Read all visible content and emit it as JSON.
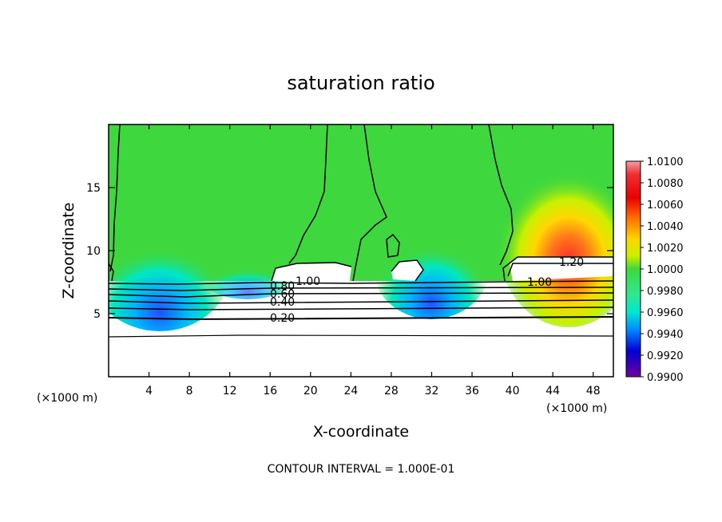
{
  "chart_data": {
    "type": "heatmap",
    "title": "saturation ratio",
    "xlabel": "X-coordinate",
    "ylabel": "Z-coordinate",
    "x_unit": "(×1000 m)",
    "x_unit_right": "(×1000 m)",
    "xlim": [
      0,
      50
    ],
    "ylim": [
      0,
      20
    ],
    "x_ticks": [
      "4",
      "8",
      "12",
      "16",
      "20",
      "24",
      "28",
      "32",
      "36",
      "40",
      "44",
      "48"
    ],
    "y_ticks": [
      "5",
      "10",
      "15"
    ],
    "footer": "CONTOUR INTERVAL = 1.000E-01",
    "colorbar": {
      "labels": [
        "1.0100",
        "1.0080",
        "1.0060",
        "1.0040",
        "1.0020",
        "1.0000",
        "0.9980",
        "0.9960",
        "0.9940",
        "0.9920",
        "0.9900"
      ],
      "colors": [
        "#f2a0a8",
        "#f03030",
        "#e80000",
        "#ff6a00",
        "#ffd400",
        "#c8f000",
        "#3ed83e",
        "#00e8b0",
        "#008cff",
        "#0000d0",
        "#7000a0"
      ],
      "range": [
        0.99,
        1.01
      ]
    },
    "contour_labels": [
      "1.00",
      "1.20",
      "1.00",
      "0.80",
      "0.60",
      "0.40",
      "0.20"
    ],
    "contour_levels": [
      0.2,
      0.4,
      0.6,
      0.8,
      1.0,
      1.2
    ]
  }
}
